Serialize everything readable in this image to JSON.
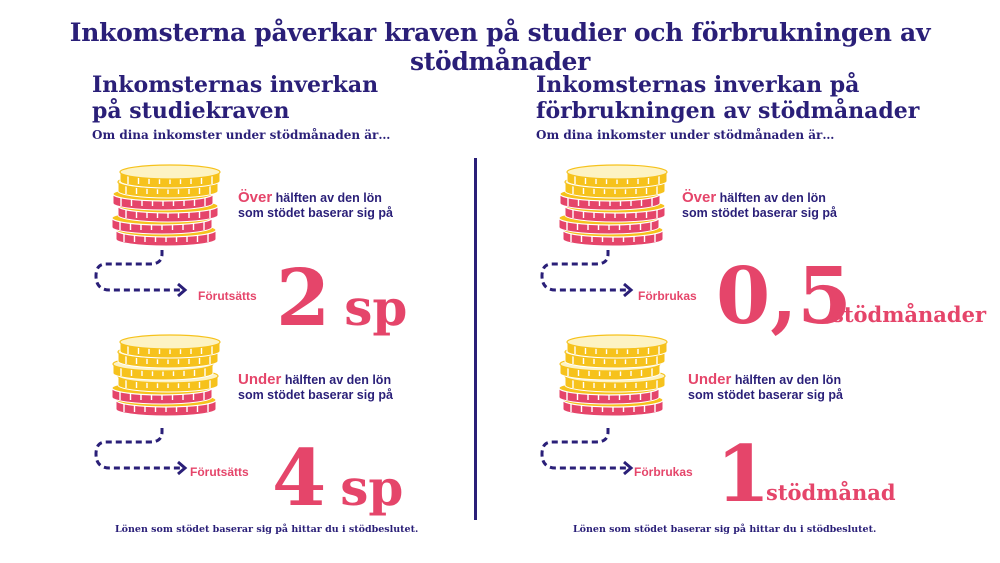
{
  "title": "Inkomsterna påverkar kraven på studier och förbrukningen av stödmånader",
  "left": {
    "heading_line1": "Inkomsternas inverkan",
    "heading_line2": "på studiekraven",
    "intro": "Om dina inkomster under stödmånaden är…",
    "over": {
      "highlight": "Över",
      "text1": " hälften av den lön",
      "text2": "som stödet baserar sig på",
      "action": "Förutsätts",
      "number": "2",
      "unit": "sp"
    },
    "under": {
      "highlight": "Under",
      "text1": " hälften av den lön",
      "text2": "som stödet baserar sig på",
      "action": "Förutsätts",
      "number": "4",
      "unit": "sp"
    },
    "footnote": "Lönen som stödet baserar sig på hittar du i stödbeslutet."
  },
  "right": {
    "heading_line1": "Inkomsternas inverkan på",
    "heading_line2": "förbrukningen av stödmånader",
    "intro": "Om dina inkomster under stödmånaden är…",
    "over": {
      "highlight": "Över",
      "text1": " hälften av den lön",
      "text2": "som stödet baserar sig på",
      "action": "Förbrukas",
      "number": "0,5",
      "unit": "stödmånader"
    },
    "under": {
      "highlight": "Under",
      "text1": " hälften av den lön",
      "text2": "som stödet baserar sig på",
      "action": "Förbrukas",
      "number": "1",
      "unit": "stödmånad"
    },
    "footnote": "Lönen som stödet baserar sig på hittar du i stödbeslutet."
  },
  "colors": {
    "navy": "#2a1f78",
    "pink": "#e5456a",
    "gold": "#f6c21c",
    "cream": "#fdf3c4"
  }
}
